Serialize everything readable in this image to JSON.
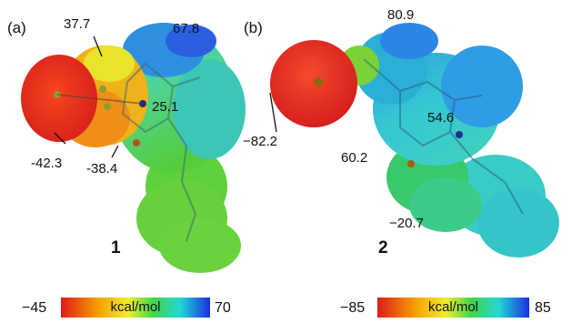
{
  "panels": [
    {
      "label": "(a)",
      "compound": "1",
      "values": [
        "37.7",
        "67.8",
        "25.1",
        "-42.3",
        "-38.4"
      ],
      "scale": {
        "min": "−45",
        "max": "70",
        "unit": "kcal/mol"
      }
    },
    {
      "label": "(b)",
      "compound": "2",
      "values": [
        "80.9",
        "54.6",
        "−82.2",
        "60.2",
        "−20.7"
      ],
      "scale": {
        "min": "−85",
        "max": "85",
        "unit": "kcal/mol"
      }
    }
  ],
  "colors": {
    "negative": "#e8231c",
    "neutral": "#3fca3a",
    "positive": "#1a3ee0"
  }
}
